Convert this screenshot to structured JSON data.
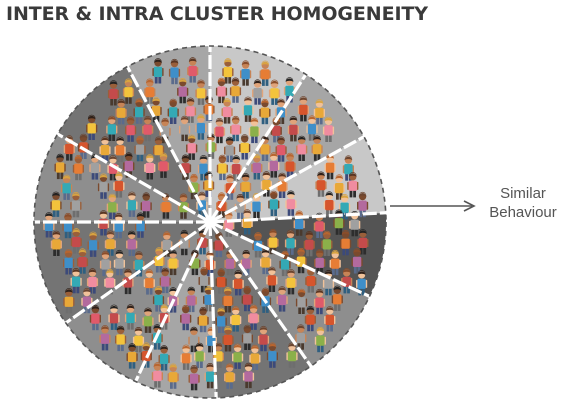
{
  "title": "INTER & INTRA CLUSTER HOMOGENEITY",
  "annotation": {
    "line1": "Similar",
    "line2": "Behaviour"
  },
  "colors": {
    "text": "#3a3a3a",
    "annotation": "#555555",
    "arrow": "#555555",
    "divider": "#ffffff",
    "outline": "#555555",
    "sector_shades": [
      "#c8c8c8",
      "#a6a6a6",
      "#8e8e8e",
      "#747474",
      "#5e5e5e"
    ],
    "highlight_sector": "#545454",
    "skin": [
      "#f1c29a",
      "#e0a47a",
      "#c78456",
      "#9a5f3a",
      "#7a4a2e"
    ],
    "hair": [
      "#5a3522",
      "#2e2019",
      "#8a4d2a",
      "#b8652f",
      "#d9a441",
      "#222222",
      "#6b4530"
    ],
    "shirts": [
      "#e8a838",
      "#d6552d",
      "#34a9b5",
      "#b36a9e",
      "#8bb04a",
      "#e05a6a",
      "#f3c33c",
      "#e67d35",
      "#3f8fc9",
      "#c44b4b",
      "#f08ca0",
      "#a0a0a0"
    ],
    "pants": [
      "#3c4a7a",
      "#2d2d2d",
      "#5a6b8c",
      "#4a3a2e",
      "#6e6e6e",
      "#2f5f80"
    ]
  },
  "icons": {
    "arrow": "arrow-right-icon",
    "person": "person-icon"
  }
}
